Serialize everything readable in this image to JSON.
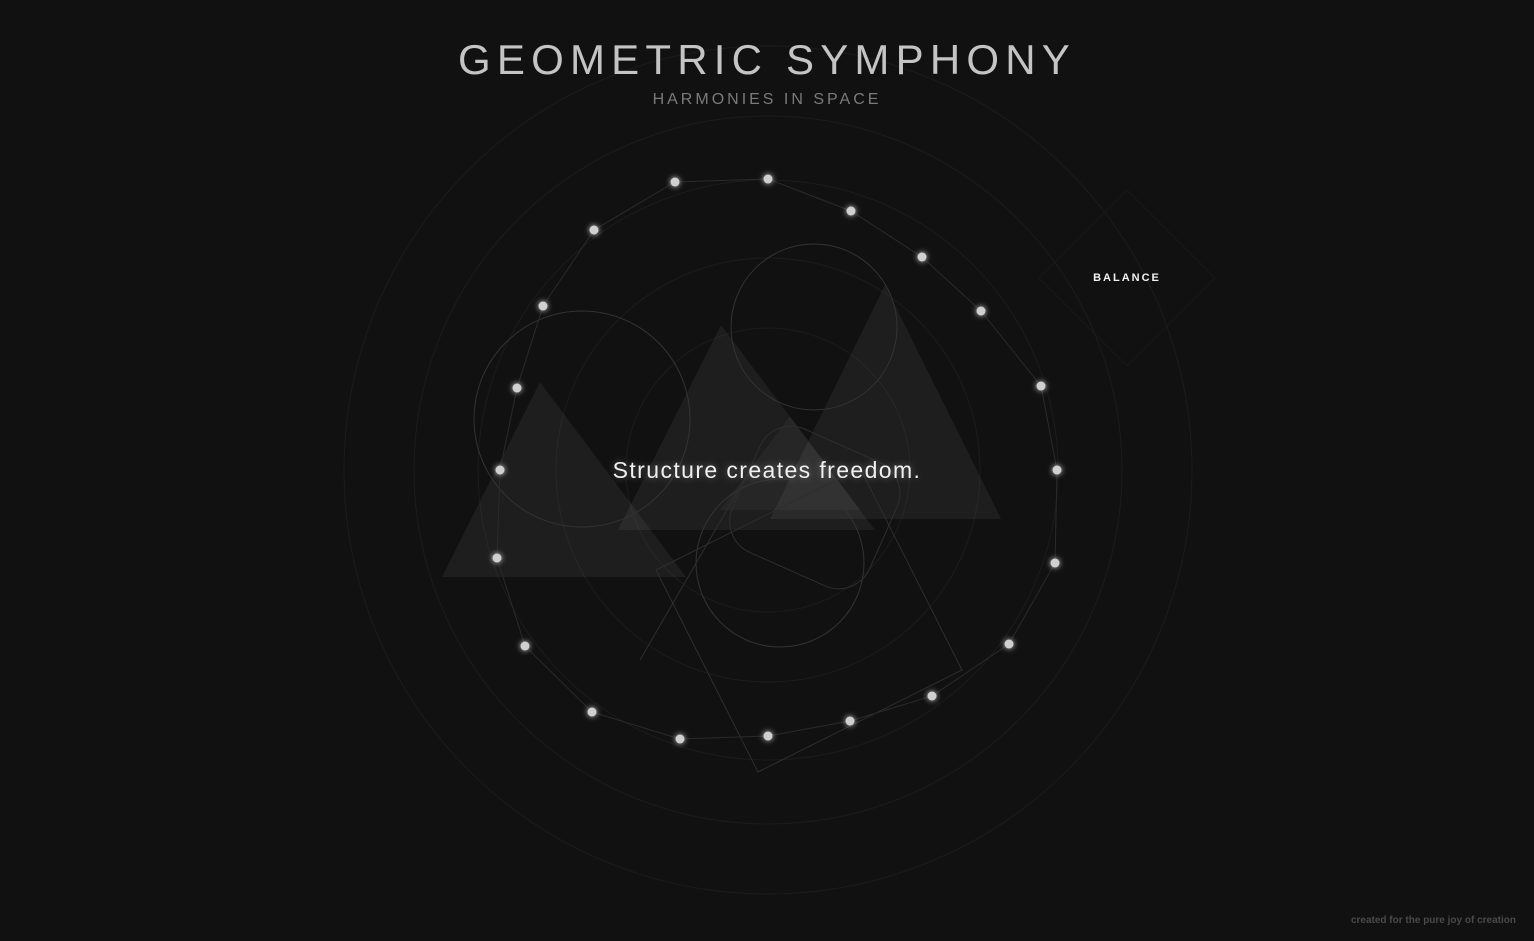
{
  "header": {
    "title": "GEOMETRIC SYMPHONY",
    "subtitle": "HARMONIES IN SPACE"
  },
  "center_quote": "Structure creates freedom.",
  "orbit_label": "BALANCE",
  "footer": "created for the pure joy of creation",
  "colors": {
    "background": "#111111",
    "dot": "#d0d0d0",
    "line": "#2c2c2c",
    "shape_fill": "#1f1f1f"
  }
}
